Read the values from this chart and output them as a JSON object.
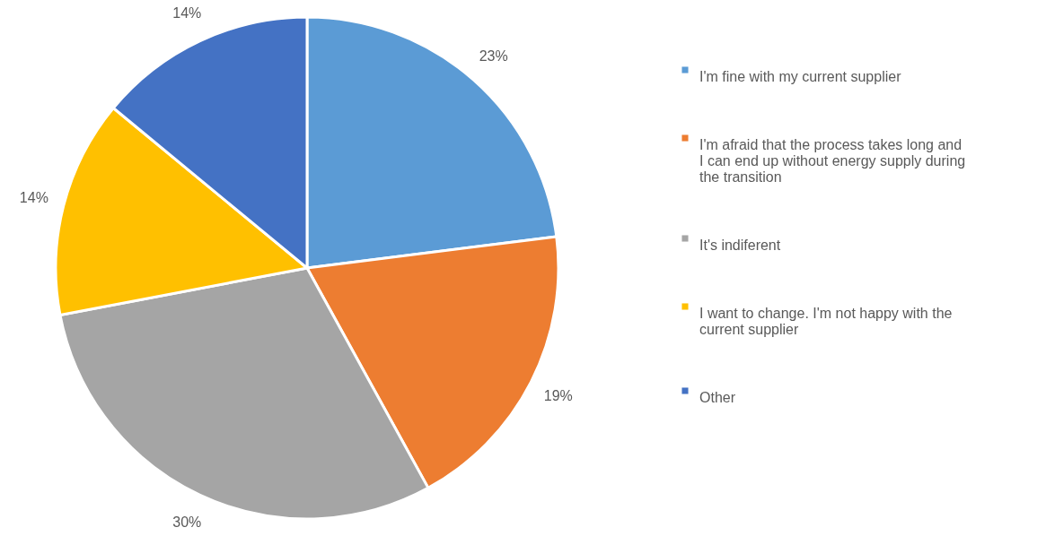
{
  "chart_data": {
    "type": "pie",
    "categories": [
      "I'm fine with my current supplier",
      "I'm afraid that the process takes long and I can end up without energy supply during the transition",
      "It's indiferent",
      "I want to change. I'm not happy with the current supplier",
      "Other"
    ],
    "values": [
      23,
      19,
      30,
      14,
      14
    ],
    "colors": [
      "#5b9bd5",
      "#ed7d31",
      "#a5a5a5",
      "#ffc000",
      "#4472c4"
    ],
    "value_labels": [
      "23%",
      "19%",
      "30%",
      "14%",
      "14%"
    ],
    "legend": "right"
  }
}
